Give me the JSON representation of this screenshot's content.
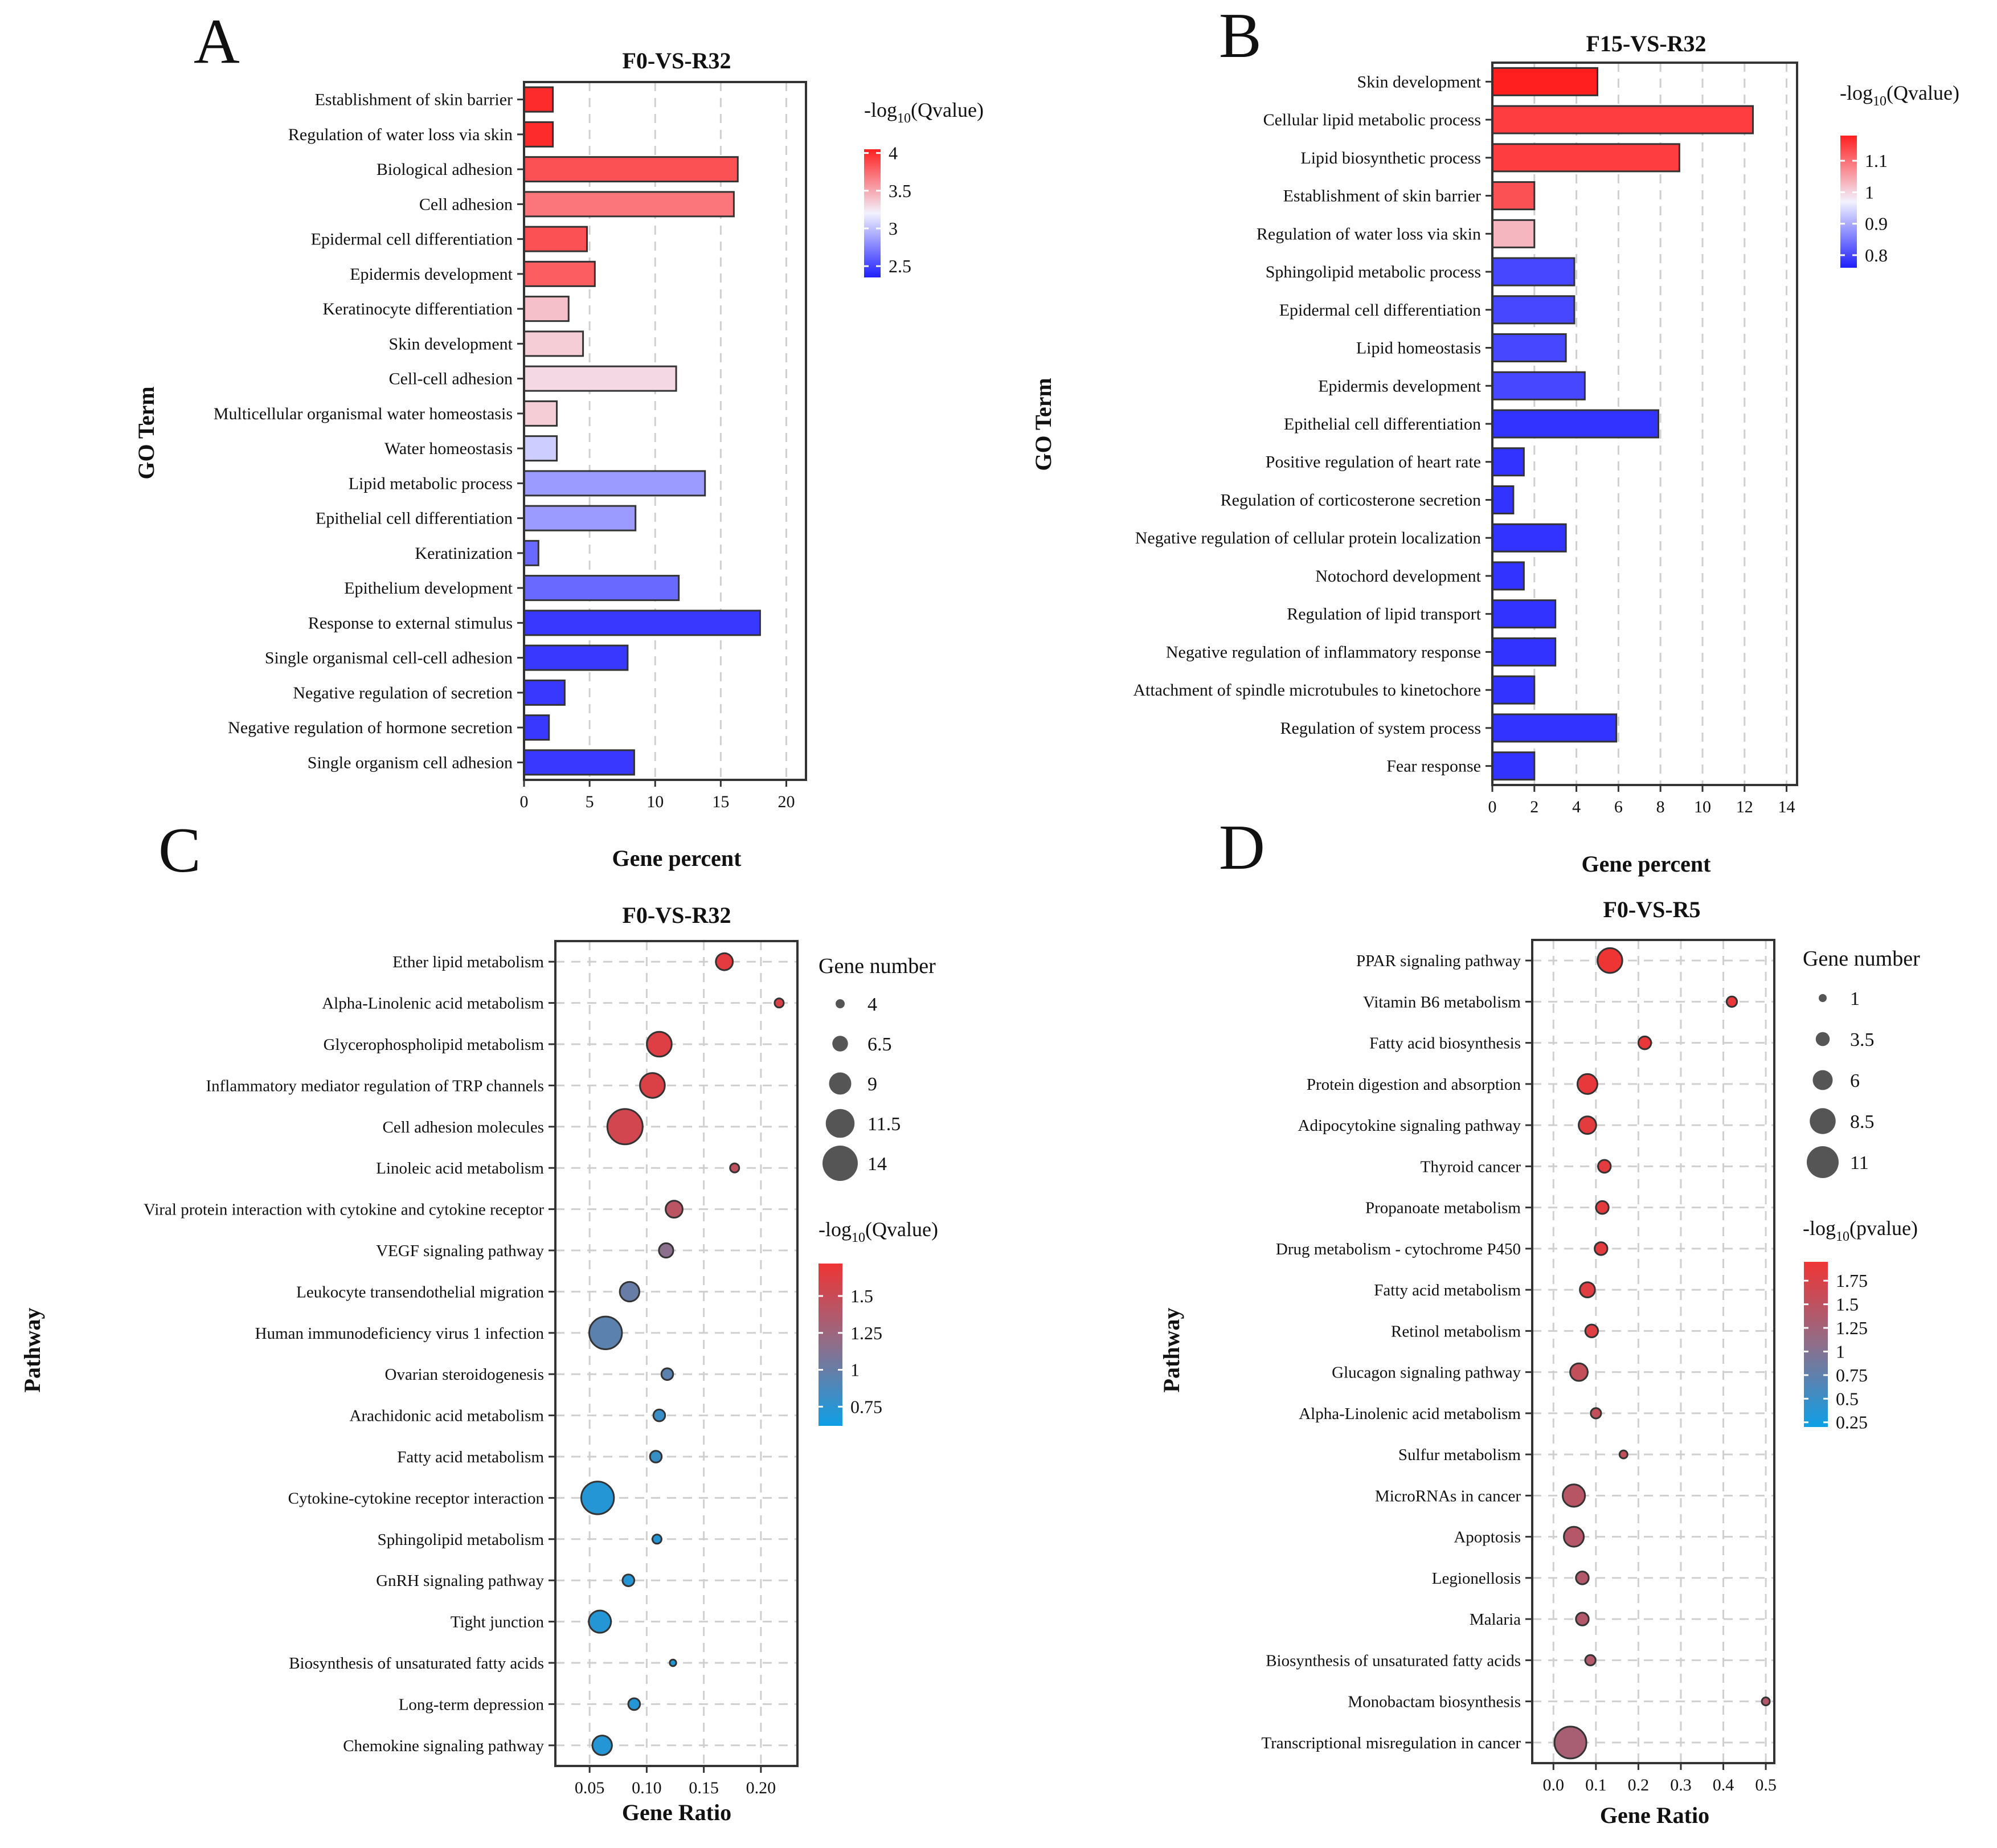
{
  "panels": [
    {
      "letter": "A",
      "chart_data": {
        "type": "bar",
        "title": "F0-VS-R32",
        "xlabel": "Gene percent",
        "ylabel": "GO Term",
        "xlim": [
          0,
          21.5
        ],
        "xticks": [
          0,
          5,
          10,
          15,
          20
        ],
        "grid": true,
        "legend_title": "-log10(Qvalue)",
        "color_scale": {
          "min": 2.35,
          "max": 4.05,
          "low_color": "#1f1fff",
          "mid_color": "#f2f2ff",
          "high_color": "#ff1f1f",
          "ticks": [
            4,
            3.5,
            3,
            2.5
          ]
        },
        "categories": [
          "Establishment of skin barrier",
          "Regulation of water loss via skin",
          "Biological adhesion",
          "Cell adhesion",
          "Epidermal cell differentiation",
          "Epidermis development",
          "Keratinocyte differentiation",
          "Skin development",
          "Cell-cell adhesion",
          "Multicellular organismal water homeostasis",
          "Water homeostasis",
          "Lipid metabolic process",
          "Epithelial cell differentiation",
          "Keratinization",
          "Epithelium development",
          "Response to external stimulus",
          "Single organismal cell-cell adhesion",
          "Negative regulation of secretion",
          "Negative regulation of hormone secretion",
          "Single organism cell adhesion"
        ],
        "values": [
          2.2,
          2.2,
          16.3,
          16.0,
          4.8,
          5.4,
          3.4,
          4.5,
          11.6,
          2.5,
          2.5,
          13.8,
          8.5,
          1.1,
          11.8,
          18.0,
          7.9,
          3.1,
          1.9,
          8.4
        ],
        "qvalues": [
          4.0,
          4.0,
          3.85,
          3.7,
          3.85,
          3.8,
          3.4,
          3.35,
          3.3,
          3.35,
          3.05,
          2.85,
          2.85,
          2.65,
          2.65,
          2.45,
          2.45,
          2.45,
          2.45,
          2.45
        ]
      }
    },
    {
      "letter": "B",
      "chart_data": {
        "type": "bar",
        "title": "F15-VS-R32",
        "xlabel": "Gene percent",
        "ylabel": "GO Term",
        "xlim": [
          0,
          14.5
        ],
        "xticks": [
          0,
          2,
          4,
          6,
          8,
          10,
          12,
          14
        ],
        "grid": true,
        "legend_title": "-log10(Qvalue)",
        "color_scale": {
          "min": 0.76,
          "max": 1.18,
          "low_color": "#1f1fff",
          "mid_color": "#f2f2ff",
          "high_color": "#ff1f1f",
          "ticks": [
            1.1,
            1,
            0.9,
            0.8
          ]
        },
        "categories": [
          "Skin development",
          "Cellular lipid metabolic process",
          "Lipid biosynthetic process",
          "Establishment of skin barrier",
          "Regulation of water loss via skin",
          "Sphingolipid metabolic process",
          "Epidermal cell differentiation",
          "Lipid homeostasis",
          "Epidermis development",
          "Epithelial cell differentiation",
          "Positive regulation of heart rate",
          "Regulation of corticosterone secretion",
          "Negative regulation of cellular protein localization",
          "Notochord development",
          "Regulation of lipid transport",
          "Negative regulation of inflammatory response",
          "Attachment of spindle microtubules to kinetochore",
          "Regulation of system process",
          "Fear response"
        ],
        "values": [
          5.0,
          12.4,
          8.9,
          2.0,
          2.0,
          3.9,
          3.9,
          3.5,
          4.4,
          7.9,
          1.5,
          1.0,
          3.5,
          1.5,
          3.0,
          3.0,
          2.0,
          5.9,
          2.0
        ],
        "qvalues": [
          1.18,
          1.15,
          1.15,
          1.13,
          1.03,
          0.8,
          0.8,
          0.8,
          0.8,
          0.78,
          0.78,
          0.78,
          0.78,
          0.78,
          0.78,
          0.78,
          0.78,
          0.78,
          0.78
        ]
      }
    },
    {
      "letter": "C",
      "chart_data": {
        "type": "scatter",
        "title": "F0-VS-R32",
        "xlabel": "Gene Ratio",
        "ylabel": "Pathway",
        "xlim": [
          0.02,
          0.232
        ],
        "xticks": [
          0.05,
          0.1,
          0.15,
          0.2
        ],
        "xtick_labels": [
          "0.05",
          "0.10",
          "0.15",
          "0.20"
        ],
        "grid": true,
        "size_legend_title": "Gene number",
        "size_legend": [
          4,
          6.5,
          9,
          11.5,
          14
        ],
        "size_range": [
          4,
          14
        ],
        "legend_title": "-log10(Qvalue)",
        "color_scale": {
          "min": 0.62,
          "max": 1.72,
          "low_color": "#0e9fe6",
          "mid_color": "#8f6e8a",
          "high_color": "#ef3434",
          "ticks": [
            1.5,
            1.25,
            1,
            0.75
          ]
        },
        "categories": [
          "Ether lipid metabolism",
          "Alpha-Linolenic acid metabolism",
          "Glycerophospholipid metabolism",
          "Inflammatory mediator regulation of TRP channels",
          "Cell adhesion molecules",
          "Linoleic acid metabolism",
          "Viral protein interaction with cytokine and cytokine receptor",
          "VEGF signaling pathway",
          "Leukocyte transendothelial migration",
          "Human immunodeficiency virus 1 infection",
          "Ovarian steroidogenesis",
          "Arachidonic acid metabolism",
          "Fatty acid metabolism",
          "Cytokine-cytokine receptor interaction",
          "Sphingolipid metabolism",
          "GnRH signaling pathway",
          "Tight junction",
          "Biosynthesis of unsaturated fatty acids",
          "Long-term depression",
          "Chemokine signaling pathway"
        ],
        "x": [
          0.168,
          0.216,
          0.111,
          0.105,
          0.081,
          0.177,
          0.124,
          0.117,
          0.085,
          0.064,
          0.118,
          0.111,
          0.108,
          0.057,
          0.109,
          0.084,
          0.059,
          0.123,
          0.089,
          0.061
        ],
        "gene_number": [
          7,
          4,
          10,
          10,
          14,
          4,
          7,
          6,
          8,
          13,
          5,
          5,
          5,
          13,
          4,
          5,
          9,
          3,
          5,
          8
        ],
        "qvalues": [
          1.65,
          1.6,
          1.62,
          1.6,
          1.55,
          1.45,
          1.42,
          1.15,
          1.0,
          0.95,
          0.95,
          0.8,
          0.8,
          0.72,
          0.72,
          0.72,
          0.72,
          0.72,
          0.72,
          0.72
        ]
      }
    },
    {
      "letter": "D",
      "chart_data": {
        "type": "scatter",
        "title": "F0-VS-R5",
        "xlabel": "Gene Ratio",
        "ylabel": "Pathway",
        "xlim": [
          -0.05,
          0.52
        ],
        "xticks": [
          0,
          0.1,
          0.2,
          0.3,
          0.4,
          0.5
        ],
        "xtick_labels": [
          "0.0",
          "0.1",
          "0.2",
          "0.3",
          "0.4",
          "0.5"
        ],
        "grid": true,
        "size_legend_title": "Gene number",
        "size_legend": [
          1,
          3.5,
          6,
          8.5,
          11
        ],
        "size_range": [
          1,
          11
        ],
        "legend_title": "-log10(pvalue)",
        "color_scale": {
          "min": 0.2,
          "max": 1.95,
          "low_color": "#0e9fe6",
          "mid_color": "#8f6e8a",
          "high_color": "#ef3434",
          "ticks": [
            1.75,
            1.5,
            1.25,
            1,
            0.75,
            0.5,
            0.25
          ]
        },
        "categories": [
          "PPAR signaling pathway",
          "Vitamin B6 metabolism",
          "Fatty acid biosynthesis",
          "Protein digestion and absorption",
          "Adipocytokine signaling pathway",
          "Thyroid cancer",
          "Propanoate metabolism",
          "Drug metabolism - cytochrome P450",
          "Fatty acid metabolism",
          "Retinol metabolism",
          "Glucagon signaling pathway",
          "Alpha-Linolenic acid metabolism",
          "Sulfur metabolism",
          "MicroRNAs in cancer",
          "Apoptosis",
          "Legionellosis",
          "Malaria",
          "Biosynthesis of unsaturated fatty acids",
          "Monobactam biosynthesis",
          "Transcriptional misregulation in cancer"
        ],
        "x": [
          0.133,
          0.42,
          0.215,
          0.08,
          0.08,
          0.12,
          0.115,
          0.112,
          0.08,
          0.09,
          0.06,
          0.1,
          0.165,
          0.048,
          0.048,
          0.068,
          0.068,
          0.087,
          0.5,
          0.04
        ],
        "gene_number": [
          8,
          2,
          3,
          6,
          5,
          3,
          3,
          3,
          4,
          3,
          5,
          2,
          1,
          7,
          6,
          3,
          3,
          2,
          1,
          11
        ],
        "qvalues": [
          1.95,
          1.9,
          1.9,
          1.88,
          1.85,
          1.85,
          1.85,
          1.85,
          1.8,
          1.8,
          1.55,
          1.55,
          1.55,
          1.45,
          1.42,
          1.4,
          1.4,
          1.4,
          1.4,
          1.3
        ]
      }
    }
  ]
}
